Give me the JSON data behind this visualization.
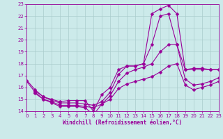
{
  "background_color": "#cceaea",
  "line_color": "#990099",
  "grid_color": "#aacccc",
  "xlabel": "Windchill (Refroidissement éolien,°C)",
  "xlim": [
    0,
    23
  ],
  "ylim": [
    14,
    23
  ],
  "xticks": [
    0,
    1,
    2,
    3,
    4,
    5,
    6,
    7,
    8,
    9,
    10,
    11,
    12,
    13,
    14,
    15,
    16,
    17,
    18,
    19,
    20,
    21,
    22,
    23
  ],
  "yticks": [
    14,
    15,
    16,
    17,
    18,
    19,
    20,
    21,
    22,
    23
  ],
  "line1_x": [
    0,
    1,
    2,
    3,
    4,
    5,
    6,
    7,
    8,
    9,
    10,
    11,
    12,
    13,
    14,
    15,
    16,
    17,
    18,
    19,
    20,
    21,
    22,
    23
  ],
  "line1_y": [
    16.6,
    15.8,
    15.2,
    15.0,
    14.8,
    14.9,
    14.9,
    14.9,
    14.0,
    15.4,
    16.0,
    17.5,
    17.8,
    17.8,
    18.0,
    22.2,
    22.6,
    22.9,
    22.2,
    17.5,
    17.6,
    17.6,
    17.5,
    17.5
  ],
  "line2_x": [
    1,
    2,
    3,
    4,
    5,
    6,
    7,
    8,
    9,
    10,
    11,
    12,
    13,
    14,
    15,
    16,
    17,
    18,
    19,
    20,
    21,
    22,
    23
  ],
  "line2_y": [
    15.7,
    15.2,
    14.9,
    14.7,
    14.7,
    14.7,
    14.6,
    14.5,
    14.8,
    15.6,
    17.1,
    17.8,
    17.8,
    18.0,
    19.6,
    22.0,
    22.2,
    19.6,
    17.5,
    17.5,
    17.5,
    17.5,
    17.5
  ],
  "line3_x": [
    1,
    2,
    3,
    4,
    5,
    6,
    7,
    8,
    9,
    10,
    11,
    12,
    13,
    14,
    15,
    16,
    17,
    18,
    19,
    20,
    21,
    22,
    23
  ],
  "line3_y": [
    15.5,
    15.0,
    14.8,
    14.5,
    14.5,
    14.5,
    14.4,
    14.3,
    14.6,
    15.3,
    16.5,
    17.2,
    17.5,
    17.7,
    18.0,
    19.0,
    19.6,
    19.6,
    16.7,
    16.2,
    16.3,
    16.5,
    16.8
  ],
  "line4_x": [
    0,
    1,
    2,
    3,
    4,
    5,
    6,
    7,
    8,
    9,
    10,
    11,
    12,
    13,
    14,
    15,
    16,
    17,
    18,
    19,
    20,
    21,
    22,
    23
  ],
  "line4_y": [
    16.5,
    15.6,
    15.0,
    14.7,
    14.4,
    14.4,
    14.4,
    14.3,
    13.7,
    14.6,
    15.0,
    15.9,
    16.3,
    16.5,
    16.7,
    16.9,
    17.3,
    17.8,
    18.0,
    16.2,
    15.8,
    16.0,
    16.2,
    16.5
  ]
}
